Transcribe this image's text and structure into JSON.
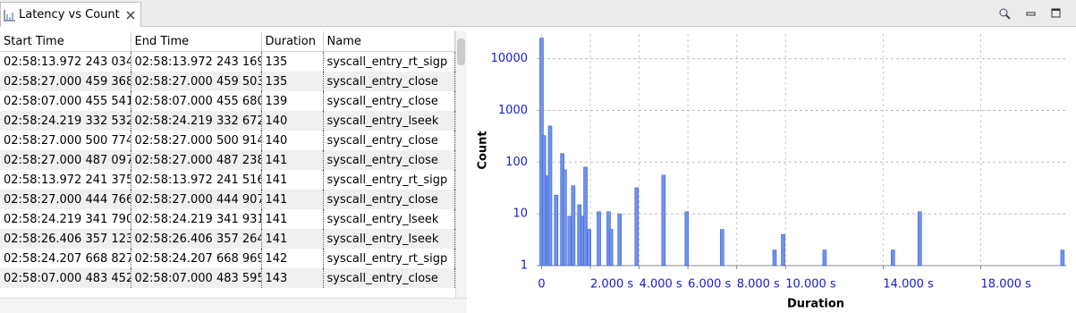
{
  "tab": {
    "title": "Latency vs Count"
  },
  "table": {
    "columns": [
      "Start Time",
      "End Time",
      "Duration",
      "Name"
    ],
    "rows": [
      [
        "02:58:13.972 243 034",
        "02:58:13.972 243 169",
        "135",
        "syscall_entry_rt_sigp"
      ],
      [
        "02:58:27.000 459 368",
        "02:58:27.000 459 503",
        "135",
        "syscall_entry_close"
      ],
      [
        "02:58:07.000 455 541",
        "02:58:07.000 455 680",
        "139",
        "syscall_entry_close"
      ],
      [
        "02:58:24.219 332 532",
        "02:58:24.219 332 672",
        "140",
        "syscall_entry_lseek"
      ],
      [
        "02:58:27.000 500 774",
        "02:58:27.000 500 914",
        "140",
        "syscall_entry_close"
      ],
      [
        "02:58:27.000 487 097",
        "02:58:27.000 487 238",
        "141",
        "syscall_entry_close"
      ],
      [
        "02:58:13.972 241 375",
        "02:58:13.972 241 516",
        "141",
        "syscall_entry_rt_sigp"
      ],
      [
        "02:58:27.000 444 766",
        "02:58:27.000 444 907",
        "141",
        "syscall_entry_close"
      ],
      [
        "02:58:24.219 341 790",
        "02:58:24.219 341 931",
        "141",
        "syscall_entry_lseek"
      ],
      [
        "02:58:26.406 357 123",
        "02:58:26.406 357 264",
        "141",
        "syscall_entry_lseek"
      ],
      [
        "02:58:24.207 668 827",
        "02:58:24.207 668 969",
        "142",
        "syscall_entry_rt_sigp"
      ],
      [
        "02:58:07.000 483 452",
        "02:58:07.000 483 595",
        "143",
        "syscall_entry_close"
      ]
    ]
  },
  "chart_data": {
    "type": "bar",
    "x_label": "Duration",
    "y_label": "Count",
    "x": [
      0,
      0.1,
      0.25,
      0.35,
      0.6,
      0.85,
      0.95,
      1.15,
      1.3,
      1.55,
      1.7,
      1.8,
      1.95,
      2.35,
      2.75,
      2.85,
      3.2,
      3.9,
      5.0,
      5.95,
      7.4,
      9.55,
      9.9,
      11.6,
      14.4,
      15.5,
      21.35
    ],
    "values": [
      25000,
      325,
      54,
      500,
      23,
      146,
      71,
      9,
      35,
      15,
      9,
      80,
      5,
      11,
      11,
      5,
      10,
      32,
      56,
      11,
      5,
      2,
      4,
      2,
      2,
      11,
      2
    ],
    "color": "#6f93ea",
    "edge_color": "#3d5fcc",
    "axis_color": "#1a1acc",
    "log_y": true,
    "grid": true,
    "xlim": [
      -0.2,
      21.5
    ],
    "xticks": [
      0,
      {
        "value": 2,
        "label": "2.000 s"
      },
      {
        "value": 4,
        "label": "4.000 s"
      },
      {
        "value": 6,
        "label": "6.000 s"
      },
      {
        "value": 8,
        "label": "8.000 s"
      },
      {
        "value": 10,
        "label": "10.000 s"
      },
      {
        "value": 14,
        "label": "14.000 s"
      },
      {
        "value": 18,
        "label": "18.000 s"
      }
    ],
    "ylim": [
      1,
      30000
    ],
    "yticks": [
      1,
      10,
      100,
      1000,
      10000
    ]
  }
}
